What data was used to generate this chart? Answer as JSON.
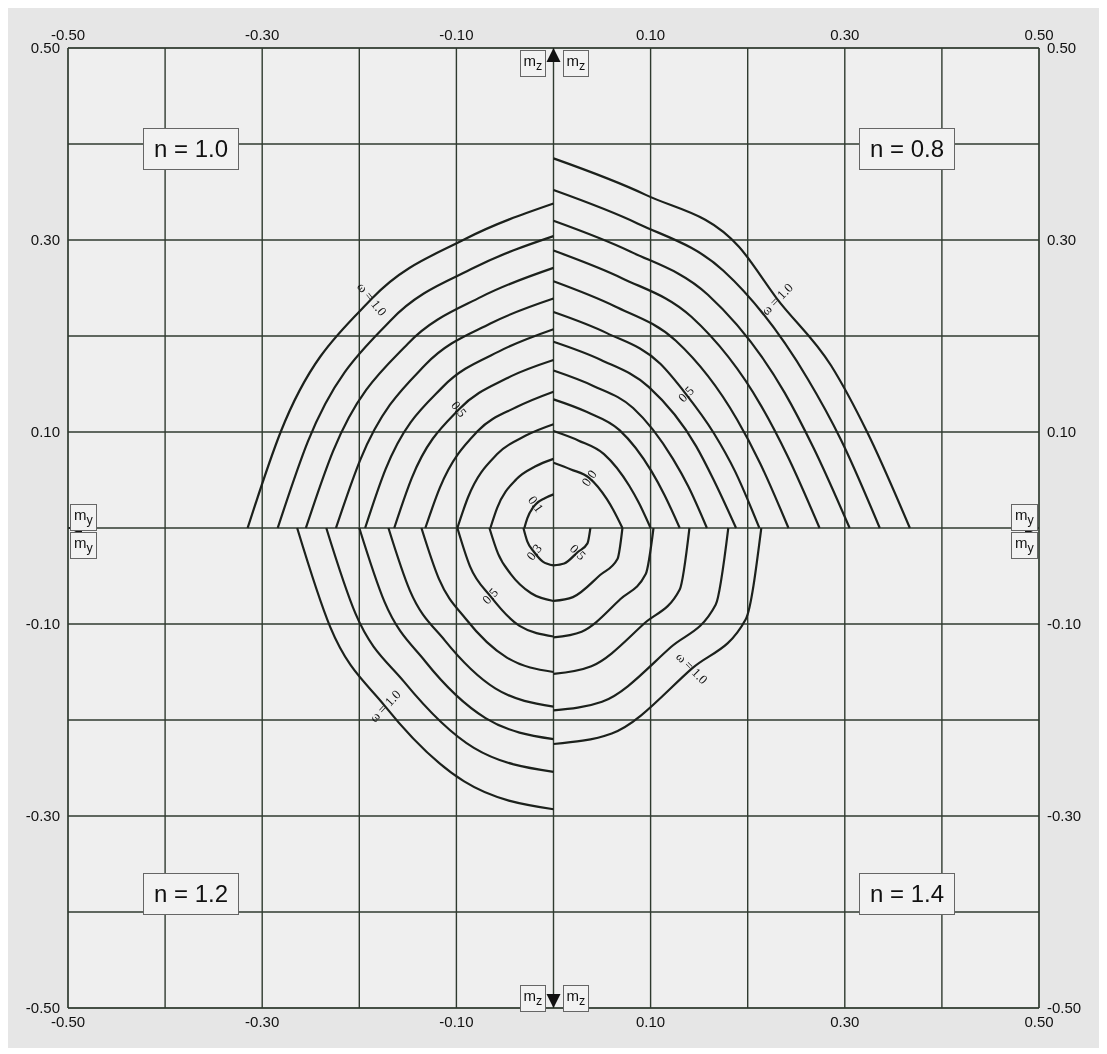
{
  "chart_data": {
    "type": "line",
    "xlabel": "m$_{y}$",
    "ylabel": "m$_{z}$",
    "xlim": [
      -0.5,
      0.5
    ],
    "ylim": [
      -0.5,
      0.5
    ],
    "x2lim": [
      -0.5,
      0.5
    ],
    "y2lim": [
      -0.5,
      0.5
    ],
    "xticks": [
      {
        "value": -0.5,
        "label": "-0.50"
      },
      {
        "value": -0.4,
        "label": null
      },
      {
        "value": -0.3,
        "label": "-0.30"
      },
      {
        "value": -0.2,
        "label": null
      },
      {
        "value": -0.1,
        "label": "-0.10"
      },
      {
        "value": 0,
        "label": null
      },
      {
        "value": 0.1,
        "label": "0.10"
      },
      {
        "value": 0.2,
        "label": null
      },
      {
        "value": 0.3,
        "label": "0.30"
      },
      {
        "value": 0.4,
        "label": null
      },
      {
        "value": 0.5,
        "label": "0.50"
      }
    ],
    "x2ticks": [
      {
        "value": -0.5,
        "label": "-0.50"
      },
      {
        "value": -0.4,
        "label": null
      },
      {
        "value": -0.3,
        "label": "-0.30"
      },
      {
        "value": -0.2,
        "label": null
      },
      {
        "value": -0.1,
        "label": "-0.10"
      },
      {
        "value": 0,
        "label": null
      },
      {
        "value": 0.1,
        "label": "0.10"
      },
      {
        "value": 0.2,
        "label": null
      },
      {
        "value": 0.3,
        "label": "0.30"
      },
      {
        "value": 0.4,
        "label": null
      },
      {
        "value": 0.5,
        "label": "0.50"
      }
    ],
    "yticks": [
      {
        "value": -0.5,
        "label": "-0.50"
      },
      {
        "value": -0.4,
        "label": null
      },
      {
        "value": -0.3,
        "label": "-0.30"
      },
      {
        "value": -0.2,
        "label": null
      },
      {
        "value": -0.1,
        "label": "-0.10"
      },
      {
        "value": 0,
        "label": null
      },
      {
        "value": 0.1,
        "label": "0.10"
      },
      {
        "value": 0.2,
        "label": null
      },
      {
        "value": 0.3,
        "label": "0.30"
      },
      {
        "value": 0.4,
        "label": null
      },
      {
        "value": 0.5,
        "label": "0.50"
      }
    ],
    "y2ticks": [
      {
        "value": -0.5,
        "label": "-0.50"
      },
      {
        "value": -0.4,
        "label": null
      },
      {
        "value": -0.3,
        "label": "-0.30"
      },
      {
        "value": -0.2,
        "label": null
      },
      {
        "value": -0.1,
        "label": "-0.10"
      },
      {
        "value": 0,
        "label": null
      },
      {
        "value": 0.1,
        "label": "0.10"
      },
      {
        "value": 0.2,
        "label": null
      },
      {
        "value": 0.3,
        "label": "0.30"
      },
      {
        "value": 0.4,
        "label": null
      },
      {
        "value": 0.5,
        "label": "0.50"
      }
    ],
    "grid": true,
    "series": [
      {
        "color": "#1c211c",
        "x": [
          -0.315,
          -0.281,
          -0.187,
          -0.091,
          0
        ],
        "values": [
          0,
          0.1,
          0.239,
          0.301,
          0.338
        ]
      },
      {
        "color": "#1c211c",
        "x": [
          -0.284,
          -0.253,
          -0.168,
          -0.082,
          0
        ],
        "values": [
          0,
          0.09,
          0.216,
          0.271,
          0.304
        ]
      },
      {
        "color": "#1c211c",
        "x": [
          -0.255,
          -0.227,
          -0.15,
          -0.074,
          0
        ],
        "values": [
          0,
          0.08,
          0.192,
          0.241,
          0.271
        ]
      },
      {
        "color": "#1c211c",
        "x": [
          -0.224,
          -0.199,
          -0.132,
          -0.065,
          0
        ],
        "values": [
          0,
          0.071,
          0.17,
          0.213,
          0.239
        ]
      },
      {
        "color": "#1c211c",
        "x": [
          -0.194,
          -0.173,
          -0.114,
          -0.056,
          0
        ],
        "values": [
          0,
          0.061,
          0.147,
          0.184,
          0.207
        ]
      },
      {
        "color": "#1c211c",
        "x": [
          -0.164,
          -0.146,
          -0.097,
          -0.048,
          0
        ],
        "values": [
          0,
          0.052,
          0.124,
          0.156,
          0.175
        ]
      },
      {
        "color": "#1c211c",
        "x": [
          -0.132,
          -0.117,
          -0.078,
          -0.038,
          0
        ],
        "values": [
          0,
          0.042,
          0.101,
          0.126,
          0.142
        ]
      },
      {
        "color": "#1c211c",
        "x": [
          -0.099,
          -0.088,
          -0.058,
          -0.029,
          0
        ],
        "values": [
          0,
          0.032,
          0.077,
          0.096,
          0.108
        ]
      },
      {
        "color": "#1c211c",
        "x": [
          -0.065,
          -0.058,
          -0.038,
          -0.019,
          0
        ],
        "values": [
          0,
          0.021,
          0.051,
          0.064,
          0.072
        ]
      },
      {
        "color": "#1c211c",
        "x": [
          -0.03,
          -0.027,
          -0.018,
          -0.009,
          0
        ],
        "values": [
          0,
          0.01,
          0.025,
          0.031,
          0.035
        ]
      },
      {
        "color": "#1c211c",
        "x": [
          0,
          0.095,
          0.191,
          0.23,
          0.286,
          0.323,
          0.367
        ],
        "values": [
          0.385,
          0.347,
          0.293,
          0.239,
          0.169,
          0.1,
          0
        ]
      },
      {
        "color": "#1c211c",
        "x": [
          0,
          0.087,
          0.175,
          0.262,
          0.296,
          0.336
        ],
        "values": [
          0.352,
          0.317,
          0.268,
          0.155,
          0.092,
          0
        ]
      },
      {
        "color": "#1c211c",
        "x": [
          0,
          0.079,
          0.159,
          0.238,
          0.268,
          0.305
        ],
        "values": [
          0.32,
          0.288,
          0.243,
          0.141,
          0.083,
          0
        ]
      },
      {
        "color": "#1c211c",
        "x": [
          0,
          0.071,
          0.142,
          0.214,
          0.241,
          0.274
        ],
        "values": [
          0.289,
          0.26,
          0.22,
          0.127,
          0.075,
          0
        ]
      },
      {
        "color": "#1c211c",
        "x": [
          0,
          0.063,
          0.126,
          0.189,
          0.213,
          0.242
        ],
        "values": [
          0.257,
          0.231,
          0.195,
          0.113,
          0.067,
          0
        ]
      },
      {
        "color": "#1c211c",
        "x": [
          0,
          0.055,
          0.11,
          0.136,
          0.165,
          0.187,
          0.212
        ],
        "values": [
          0.225,
          0.203,
          0.171,
          0.14,
          0.099,
          0.059,
          0
        ]
      },
      {
        "color": "#1c211c",
        "x": [
          0,
          0.049,
          0.098,
          0.147,
          0.165,
          0.188
        ],
        "values": [
          0.194,
          0.175,
          0.147,
          0.085,
          0.05,
          0
        ]
      },
      {
        "color": "#1c211c",
        "x": [
          0,
          0.041,
          0.082,
          0.123,
          0.139,
          0.158
        ],
        "values": [
          0.164,
          0.148,
          0.125,
          0.072,
          0.043,
          0
        ]
      },
      {
        "color": "#1c211c",
        "x": [
          0,
          0.034,
          0.068,
          0.101,
          0.114,
          0.13
        ],
        "values": [
          0.134,
          0.121,
          0.102,
          0.059,
          0.035,
          0
        ]
      },
      {
        "color": "#1c211c",
        "x": [
          0,
          0.026,
          0.052,
          0.078,
          0.088,
          0.1
        ],
        "values": [
          0.101,
          0.091,
          0.077,
          0.044,
          0.026,
          0
        ]
      },
      {
        "color": "#1c211c",
        "x": [
          0,
          0.018,
          0.037,
          0.055,
          0.062,
          0.071
        ],
        "values": [
          0.068,
          0.061,
          0.052,
          0.03,
          0.018,
          0
        ]
      },
      {
        "color": "#1c211c",
        "x": [
          -0.264,
          -0.23,
          -0.174,
          -0.092,
          0
        ],
        "values": [
          0,
          -0.103,
          -0.185,
          -0.264,
          -0.293
        ]
      },
      {
        "color": "#1c211c",
        "x": [
          -0.234,
          -0.204,
          -0.154,
          -0.082,
          0
        ],
        "values": [
          0,
          -0.089,
          -0.16,
          -0.229,
          -0.254
        ]
      },
      {
        "color": "#1c211c",
        "x": [
          -0.2,
          -0.174,
          -0.132,
          -0.07,
          0
        ],
        "values": [
          0,
          -0.077,
          -0.139,
          -0.198,
          -0.22
        ]
      },
      {
        "color": "#1c211c",
        "x": [
          -0.17,
          -0.148,
          -0.112,
          -0.06,
          0
        ],
        "values": [
          0,
          -0.065,
          -0.117,
          -0.167,
          -0.186
        ]
      },
      {
        "color": "#1c211c",
        "x": [
          -0.136,
          -0.118,
          -0.09,
          -0.048,
          0
        ],
        "values": [
          0,
          -0.053,
          -0.095,
          -0.135,
          -0.15
        ]
      },
      {
        "color": "#1c211c",
        "x": [
          -0.099,
          -0.086,
          -0.065,
          -0.035,
          0
        ],
        "values": [
          0,
          -0.04,
          -0.071,
          -0.102,
          -0.113
        ]
      },
      {
        "color": "#1c211c",
        "x": [
          -0.066,
          -0.057,
          -0.044,
          -0.023,
          0
        ],
        "values": [
          0,
          -0.027,
          -0.048,
          -0.068,
          -0.076
        ]
      },
      {
        "color": "#1c211c",
        "x": [
          -0.031,
          -0.027,
          -0.02,
          -0.011,
          0
        ],
        "values": [
          0,
          -0.014,
          -0.025,
          -0.035,
          -0.039
        ]
      },
      {
        "color": "#1c211c",
        "x": [
          0.214,
          0.198,
          0.143,
          0.06,
          0
        ],
        "values": [
          0,
          -0.095,
          -0.146,
          -0.214,
          -0.225
        ]
      },
      {
        "color": "#1c211c",
        "x": [
          0.18,
          0.167,
          0.121,
          0.05,
          0
        ],
        "values": [
          0,
          -0.08,
          -0.124,
          -0.181,
          -0.19
        ]
      },
      {
        "color": "#1c211c",
        "x": [
          0.14,
          0.13,
          0.094,
          0.039,
          0
        ],
        "values": [
          0,
          -0.064,
          -0.099,
          -0.144,
          -0.152
        ]
      },
      {
        "color": "#1c211c",
        "x": [
          0.103,
          0.095,
          0.069,
          0.029,
          0
        ],
        "values": [
          0,
          -0.048,
          -0.074,
          -0.108,
          -0.114
        ]
      },
      {
        "color": "#1c211c",
        "x": [
          0.071,
          0.066,
          0.048,
          0.02,
          0
        ],
        "values": [
          0,
          -0.032,
          -0.049,
          -0.072,
          -0.076
        ]
      },
      {
        "color": "#1c211c",
        "x": [
          0.038,
          0.035,
          0.025,
          0.011,
          0
        ],
        "values": [
          0,
          -0.016,
          -0.025,
          -0.037,
          -0.039
        ]
      }
    ],
    "annotations": [
      "n = 1.0",
      "n = 0.8",
      "n = 1.2",
      "n = 1.4",
      {
        "text": "ω = 1.0",
        "x": -0.187,
        "y": 0.239
      },
      {
        "text": "0.5",
        "x": -0.097,
        "y": 0.124
      },
      {
        "text": "0.1",
        "x": -0.018,
        "y": 0.025
      },
      {
        "text": "ω = 1.0",
        "x": 0.23,
        "y": 0.239
      },
      {
        "text": "0.5",
        "x": 0.136,
        "y": 0.14
      },
      {
        "text": "0.0",
        "x": 0.037,
        "y": 0.052
      },
      {
        "text": "ω = 1.0",
        "x": -0.174,
        "y": -0.185
      },
      {
        "text": "0.5",
        "x": -0.065,
        "y": -0.071
      },
      {
        "text": "0.3",
        "x": -0.02,
        "y": -0.025
      },
      {
        "text": "ω = 1.0",
        "x": 0.143,
        "y": -0.146
      },
      {
        "text": "0.5",
        "x": 0.025,
        "y": -0.025
      }
    ]
  }
}
